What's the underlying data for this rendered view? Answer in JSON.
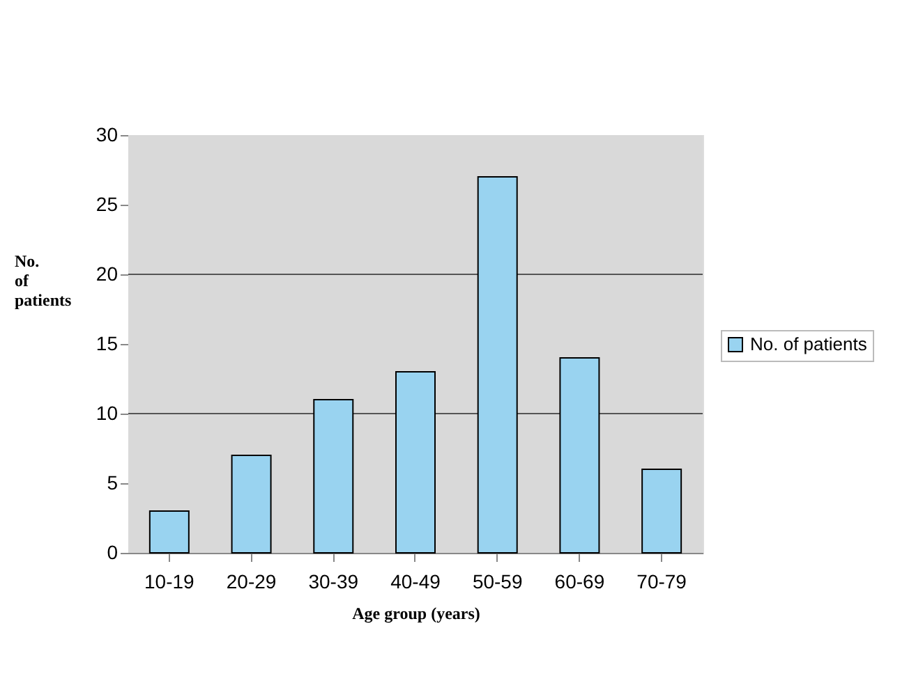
{
  "chart_data": {
    "type": "bar",
    "categories": [
      "10-19",
      "20-29",
      "30-39",
      "40-49",
      "50-59",
      "60-69",
      "70-79"
    ],
    "series": [
      {
        "name": "No. of patients",
        "color": "#99d3f0",
        "values": [
          3,
          7,
          11,
          13,
          27,
          14,
          6
        ]
      }
    ],
    "xlabel": "Age group (years)",
    "ylabel": "No. of patients",
    "ylim": [
      0,
      30
    ],
    "yticks": [
      0,
      5,
      10,
      15,
      20,
      25,
      30
    ],
    "ref_lines": [
      {
        "axis": "y",
        "value": 10,
        "label": null
      },
      {
        "axis": "y",
        "value": 20,
        "label": null
      }
    ],
    "legend": "right"
  }
}
